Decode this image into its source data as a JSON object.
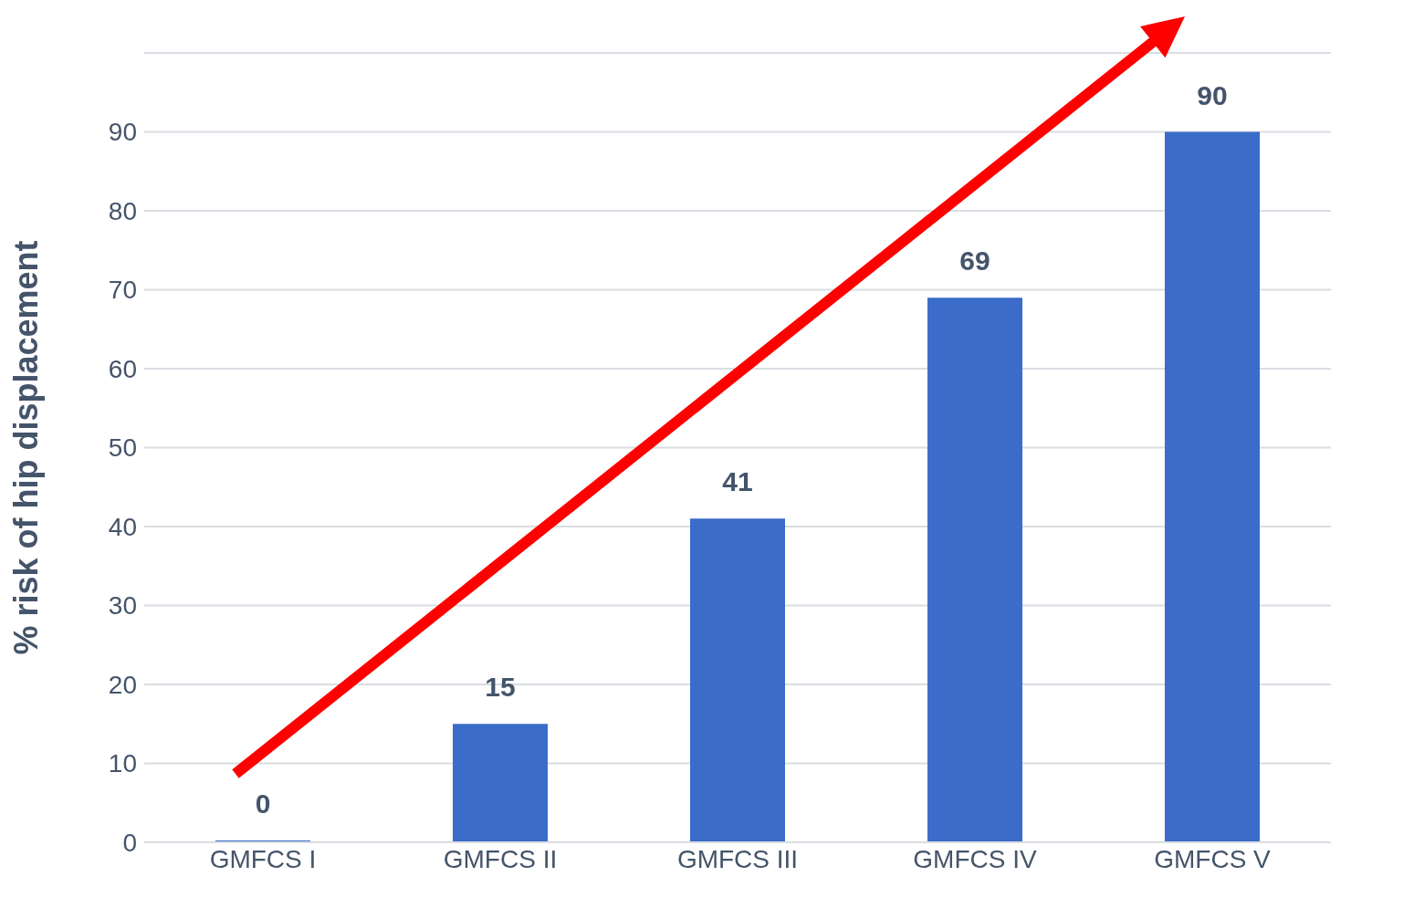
{
  "chart_data": {
    "type": "bar",
    "ylabel": "% risk of hip displacement",
    "categories": [
      "GMFCS I",
      "GMFCS II",
      "GMFCS III",
      "GMFCS IV",
      "GMFCS V"
    ],
    "values": [
      0,
      15,
      41,
      69,
      90
    ],
    "color": "#3b6cc9",
    "ylim": [
      0,
      100
    ],
    "yticks": [
      0,
      10,
      20,
      30,
      40,
      50,
      60,
      70,
      80,
      90,
      {
        "value": 100,
        "label": null
      }
    ],
    "grid": "y",
    "data_labels": true
  }
}
